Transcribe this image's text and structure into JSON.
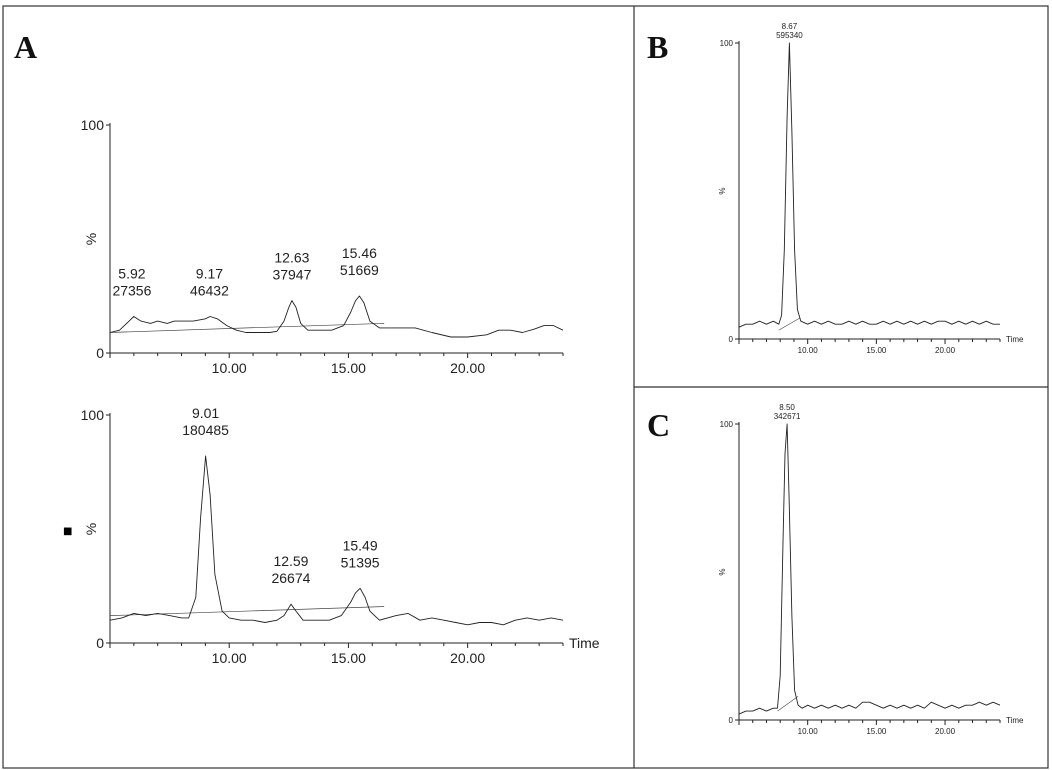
{
  "panel_letters": [
    "A",
    "B",
    "C"
  ],
  "marker_glyph": "■",
  "chart_data": [
    {
      "type": "line",
      "panel": "A",
      "ylabel": "%",
      "xlabel": "",
      "xlim": [
        5.0,
        24.0
      ],
      "ylim": [
        0,
        100
      ],
      "x_ticks": [
        "10.00",
        "15.00",
        "20.00"
      ],
      "y_ticks": [
        "0",
        "100"
      ],
      "baseline_y": 9,
      "signal": [
        [
          5.0,
          9
        ],
        [
          5.4,
          10
        ],
        [
          5.8,
          14
        ],
        [
          6.0,
          16
        ],
        [
          6.3,
          14
        ],
        [
          6.7,
          13
        ],
        [
          7.0,
          14
        ],
        [
          7.4,
          13
        ],
        [
          7.7,
          14
        ],
        [
          8.0,
          14
        ],
        [
          8.5,
          14
        ],
        [
          9.0,
          15
        ],
        [
          9.2,
          16
        ],
        [
          9.5,
          15
        ],
        [
          9.9,
          12
        ],
        [
          10.3,
          10
        ],
        [
          10.7,
          9
        ],
        [
          11.2,
          9
        ],
        [
          11.7,
          9
        ],
        [
          12.0,
          9.5
        ],
        [
          12.3,
          14
        ],
        [
          12.5,
          20
        ],
        [
          12.63,
          23
        ],
        [
          12.8,
          20
        ],
        [
          13.0,
          13
        ],
        [
          13.3,
          10
        ],
        [
          13.8,
          10
        ],
        [
          14.3,
          10
        ],
        [
          14.8,
          12
        ],
        [
          15.1,
          18
        ],
        [
          15.3,
          23
        ],
        [
          15.46,
          25
        ],
        [
          15.65,
          22
        ],
        [
          15.9,
          14
        ],
        [
          16.3,
          11
        ],
        [
          17.0,
          11
        ],
        [
          17.8,
          11
        ],
        [
          18.5,
          9
        ],
        [
          19.3,
          7
        ],
        [
          20.0,
          7
        ],
        [
          20.8,
          8
        ],
        [
          21.3,
          10
        ],
        [
          21.8,
          10
        ],
        [
          22.3,
          9
        ],
        [
          22.8,
          10.5
        ],
        [
          23.2,
          12
        ],
        [
          23.6,
          12
        ],
        [
          24.0,
          10
        ]
      ],
      "peaks": [
        {
          "rt": "5.92",
          "area": "27356",
          "x": 5.92
        },
        {
          "rt": "9.17",
          "area": "46432",
          "x": 9.17
        },
        {
          "rt": "12.63",
          "area": "37947",
          "x": 12.63
        },
        {
          "rt": "15.46",
          "area": "51669",
          "x": 15.46
        }
      ]
    },
    {
      "type": "line",
      "panel": "A",
      "ylabel": "%",
      "xlabel": "Time",
      "xlim": [
        5.0,
        24.0
      ],
      "ylim": [
        0,
        100
      ],
      "x_ticks": [
        "10.00",
        "15.00",
        "20.00"
      ],
      "y_ticks": [
        "0",
        "100"
      ],
      "baseline_y": 12,
      "signal": [
        [
          5.0,
          10
        ],
        [
          5.5,
          11
        ],
        [
          6.0,
          13
        ],
        [
          6.5,
          12
        ],
        [
          7.0,
          13
        ],
        [
          7.5,
          12
        ],
        [
          8.0,
          11
        ],
        [
          8.3,
          11
        ],
        [
          8.6,
          20
        ],
        [
          8.8,
          55
        ],
        [
          9.01,
          82
        ],
        [
          9.2,
          65
        ],
        [
          9.4,
          30
        ],
        [
          9.7,
          14
        ],
        [
          10.0,
          11
        ],
        [
          10.5,
          10
        ],
        [
          11.0,
          10
        ],
        [
          11.5,
          9
        ],
        [
          12.0,
          10
        ],
        [
          12.3,
          12
        ],
        [
          12.59,
          17
        ],
        [
          12.8,
          14
        ],
        [
          13.1,
          10
        ],
        [
          13.6,
          10
        ],
        [
          14.2,
          10
        ],
        [
          14.7,
          12
        ],
        [
          15.1,
          18
        ],
        [
          15.3,
          22
        ],
        [
          15.49,
          24
        ],
        [
          15.7,
          20
        ],
        [
          15.9,
          14
        ],
        [
          16.3,
          10
        ],
        [
          17.0,
          12
        ],
        [
          17.5,
          13
        ],
        [
          18.0,
          10
        ],
        [
          18.5,
          11
        ],
        [
          19.0,
          10
        ],
        [
          19.5,
          9
        ],
        [
          20.0,
          8
        ],
        [
          20.5,
          9
        ],
        [
          21.0,
          9
        ],
        [
          21.5,
          8
        ],
        [
          22.0,
          10
        ],
        [
          22.5,
          11
        ],
        [
          23.0,
          10
        ],
        [
          23.5,
          11
        ],
        [
          24.0,
          10
        ]
      ],
      "peaks": [
        {
          "rt": "9.01",
          "area": "180485",
          "x": 9.01
        },
        {
          "rt": "12.59",
          "area": "26674",
          "x": 12.59
        },
        {
          "rt": "15.49",
          "area": "51395",
          "x": 15.49
        }
      ]
    },
    {
      "type": "line",
      "panel": "B",
      "ylabel": "%",
      "xlabel": "Time",
      "xlim": [
        5.0,
        24.0
      ],
      "ylim": [
        0,
        100
      ],
      "x_ticks": [
        "10.00",
        "15.00",
        "20.00"
      ],
      "y_ticks": [
        "0",
        "100"
      ],
      "signal": [
        [
          5.0,
          4
        ],
        [
          5.5,
          5
        ],
        [
          6.0,
          5
        ],
        [
          6.5,
          6
        ],
        [
          7.0,
          5
        ],
        [
          7.5,
          6
        ],
        [
          7.9,
          5
        ],
        [
          8.1,
          8
        ],
        [
          8.3,
          30
        ],
        [
          8.5,
          75
        ],
        [
          8.67,
          100
        ],
        [
          8.85,
          70
        ],
        [
          9.05,
          30
        ],
        [
          9.25,
          10
        ],
        [
          9.5,
          6
        ],
        [
          10.0,
          5
        ],
        [
          10.5,
          6
        ],
        [
          11.0,
          5
        ],
        [
          11.5,
          6
        ],
        [
          12.0,
          5
        ],
        [
          12.5,
          5
        ],
        [
          13.0,
          6
        ],
        [
          13.5,
          5
        ],
        [
          14.0,
          6
        ],
        [
          14.5,
          5
        ],
        [
          15.0,
          5
        ],
        [
          15.5,
          6
        ],
        [
          16.0,
          5
        ],
        [
          16.5,
          6
        ],
        [
          17.0,
          5
        ],
        [
          17.5,
          6
        ],
        [
          18.0,
          5
        ],
        [
          18.5,
          6
        ],
        [
          19.0,
          5
        ],
        [
          19.5,
          6
        ],
        [
          20.0,
          6
        ],
        [
          20.5,
          5
        ],
        [
          21.0,
          6
        ],
        [
          21.5,
          5
        ],
        [
          22.0,
          6
        ],
        [
          22.5,
          5
        ],
        [
          23.0,
          6
        ],
        [
          23.5,
          5
        ],
        [
          24.0,
          5
        ]
      ],
      "baseline": [
        [
          7.9,
          3
        ],
        [
          9.4,
          7
        ]
      ],
      "peaks": [
        {
          "rt": "8.67",
          "area": "595340",
          "x": 8.67
        }
      ]
    },
    {
      "type": "line",
      "panel": "C",
      "ylabel": "%",
      "xlabel": "Time",
      "xlim": [
        5.0,
        24.0
      ],
      "ylim": [
        0,
        100
      ],
      "x_ticks": [
        "10.00",
        "15.00",
        "20.00"
      ],
      "y_ticks": [
        "0",
        "100"
      ],
      "signal": [
        [
          5.0,
          2
        ],
        [
          5.5,
          3
        ],
        [
          6.0,
          3
        ],
        [
          6.5,
          4
        ],
        [
          7.0,
          3
        ],
        [
          7.5,
          4
        ],
        [
          7.8,
          4
        ],
        [
          8.0,
          15
        ],
        [
          8.2,
          60
        ],
        [
          8.35,
          90
        ],
        [
          8.5,
          100
        ],
        [
          8.65,
          75
        ],
        [
          8.85,
          35
        ],
        [
          9.05,
          10
        ],
        [
          9.3,
          5
        ],
        [
          9.6,
          4
        ],
        [
          10.0,
          5
        ],
        [
          10.5,
          4
        ],
        [
          11.0,
          5
        ],
        [
          11.5,
          4
        ],
        [
          12.0,
          5
        ],
        [
          12.5,
          4
        ],
        [
          13.0,
          5
        ],
        [
          13.5,
          4
        ],
        [
          14.0,
          6
        ],
        [
          14.5,
          6
        ],
        [
          15.0,
          5
        ],
        [
          15.5,
          4
        ],
        [
          16.0,
          5
        ],
        [
          16.5,
          4
        ],
        [
          17.0,
          5
        ],
        [
          17.5,
          4
        ],
        [
          18.0,
          5
        ],
        [
          18.5,
          4
        ],
        [
          19.0,
          6
        ],
        [
          19.5,
          5
        ],
        [
          20.0,
          4
        ],
        [
          20.5,
          5
        ],
        [
          21.0,
          4
        ],
        [
          21.5,
          5
        ],
        [
          22.0,
          5
        ],
        [
          22.5,
          6
        ],
        [
          23.0,
          5
        ],
        [
          23.5,
          6
        ],
        [
          24.0,
          5
        ]
      ],
      "baseline": [
        [
          7.8,
          3
        ],
        [
          9.3,
          8
        ]
      ],
      "peaks": [
        {
          "rt": "8.50",
          "area": "342671",
          "x": 8.5
        }
      ]
    }
  ]
}
